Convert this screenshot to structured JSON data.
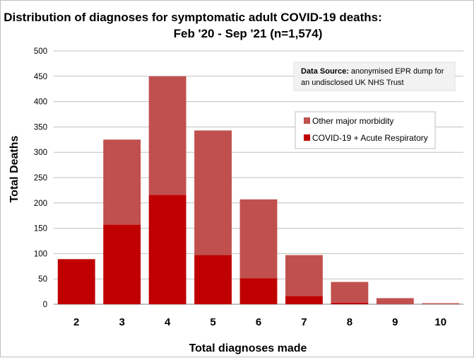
{
  "chart_data": {
    "type": "bar",
    "stacked": true,
    "title_lines": [
      "Distribution of diagnoses for symptomatic adult COVID-19 deaths:",
      "Feb '20 - Sep '21 (n=1,574)"
    ],
    "xlabel": "Total diagnoses made",
    "ylabel": "Total Deaths",
    "ylim": [
      0,
      500
    ],
    "yticks": [
      0,
      50,
      100,
      150,
      200,
      250,
      300,
      350,
      400,
      450,
      500
    ],
    "grid": true,
    "categories": [
      "2",
      "3",
      "4",
      "5",
      "6",
      "7",
      "8",
      "9",
      "10"
    ],
    "series": [
      {
        "name": "COVID-19 + Acute Respiratory",
        "color": "#c00000",
        "values": [
          89,
          157,
          216,
          97,
          51,
          16,
          3,
          0,
          0
        ]
      },
      {
        "name": "Other major morbidity",
        "color": "#c0504d",
        "values": [
          0,
          168,
          234,
          246,
          156,
          81,
          41,
          12,
          2
        ]
      }
    ],
    "legend": {
      "placement": "top-right",
      "items": [
        "Other major morbidity",
        "COVID-19 + Acute Respiratory"
      ]
    },
    "annotation": {
      "label": "Data Source:",
      "text_line1": " anonymised EPR dump for",
      "text_line2": "an undisclosed UK NHS Trust"
    }
  },
  "colors": {
    "grid": "#bfbfbf",
    "axis": "#808080",
    "note_bg": "#f2f2f2"
  }
}
